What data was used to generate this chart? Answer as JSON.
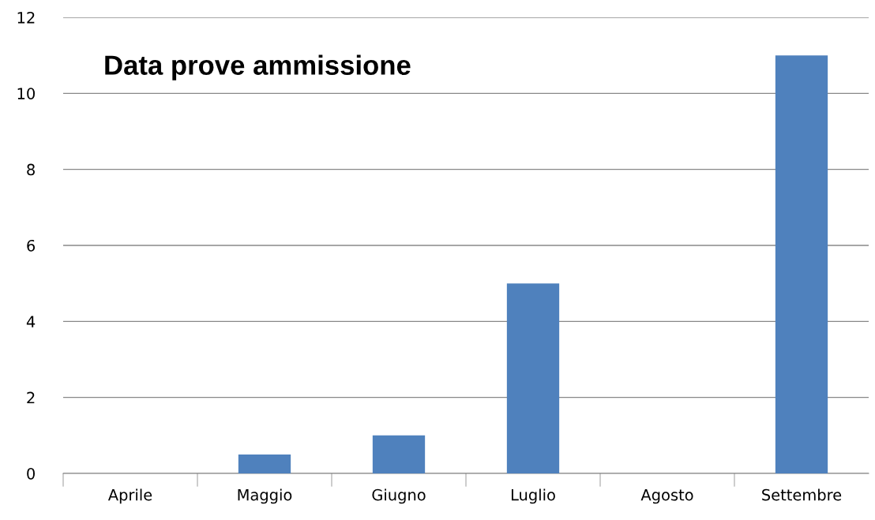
{
  "chart_data": {
    "type": "bar",
    "title": "Data prove ammissione",
    "categories": [
      "Aprile",
      "Maggio",
      "Giugno",
      "Luglio",
      "Agosto",
      "Settembre"
    ],
    "values": [
      0,
      0.5,
      1,
      5,
      0,
      11
    ],
    "color": "#4f81bd",
    "ylim": [
      0,
      12
    ],
    "yticks": [
      0,
      2,
      4,
      6,
      8,
      10,
      12
    ],
    "grid": "y"
  }
}
